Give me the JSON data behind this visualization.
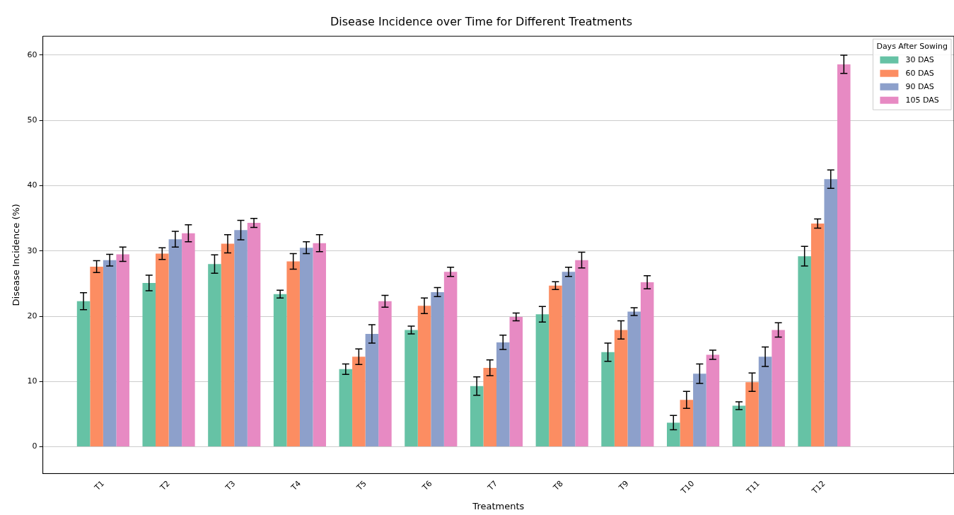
{
  "chart_data": {
    "type": "bar",
    "title": "Disease Incidence over Time for Different Treatments",
    "xlabel": "Treatments",
    "ylabel": "Disease Incidence (%)",
    "legend_title": "Days After Sowing",
    "categories": [
      "T1",
      "T2",
      "T3",
      "T4",
      "T5",
      "T6",
      "T7",
      "T8",
      "T9",
      "T10",
      "T11",
      "T12",
      null
    ],
    "series": [
      {
        "name": "30 DAS",
        "color": "#66c2a5",
        "values": [
          22.3,
          25.1,
          28.0,
          23.4,
          11.9,
          17.9,
          9.3,
          20.3,
          14.5,
          3.7,
          6.3,
          29.2,
          null
        ],
        "errors": [
          1.3,
          1.2,
          1.4,
          0.6,
          0.8,
          0.6,
          1.4,
          1.2,
          1.4,
          1.1,
          0.6,
          1.5,
          null
        ]
      },
      {
        "name": "60 DAS",
        "color": "#fc8d62",
        "values": [
          27.6,
          29.6,
          31.1,
          28.4,
          13.8,
          21.6,
          12.1,
          24.7,
          17.9,
          7.2,
          9.9,
          34.2,
          null
        ],
        "errors": [
          0.9,
          0.9,
          1.4,
          1.2,
          1.2,
          1.2,
          1.2,
          0.6,
          1.4,
          1.3,
          1.4,
          0.7,
          null
        ]
      },
      {
        "name": "90 DAS",
        "color": "#8da0cb",
        "values": [
          28.6,
          31.8,
          33.2,
          30.5,
          17.3,
          23.7,
          16.0,
          26.8,
          20.7,
          11.2,
          13.8,
          41.0,
          null
        ],
        "errors": [
          0.9,
          1.2,
          1.5,
          0.9,
          1.4,
          0.7,
          1.1,
          0.7,
          0.6,
          1.5,
          1.5,
          1.4,
          null
        ]
      },
      {
        "name": "105 DAS",
        "color": "#e78ac3",
        "values": [
          29.5,
          32.7,
          34.3,
          31.2,
          22.3,
          26.8,
          19.9,
          28.6,
          25.2,
          14.1,
          17.9,
          58.6,
          null
        ],
        "errors": [
          1.1,
          1.3,
          0.7,
          1.3,
          0.9,
          0.7,
          0.6,
          1.2,
          1.0,
          0.7,
          1.1,
          1.4,
          null
        ]
      }
    ],
    "ylim": [
      -4.1,
      62.9
    ],
    "yticks": [
      0,
      10,
      20,
      30,
      40,
      50,
      60
    ],
    "grid": "y",
    "legend": "top right"
  }
}
